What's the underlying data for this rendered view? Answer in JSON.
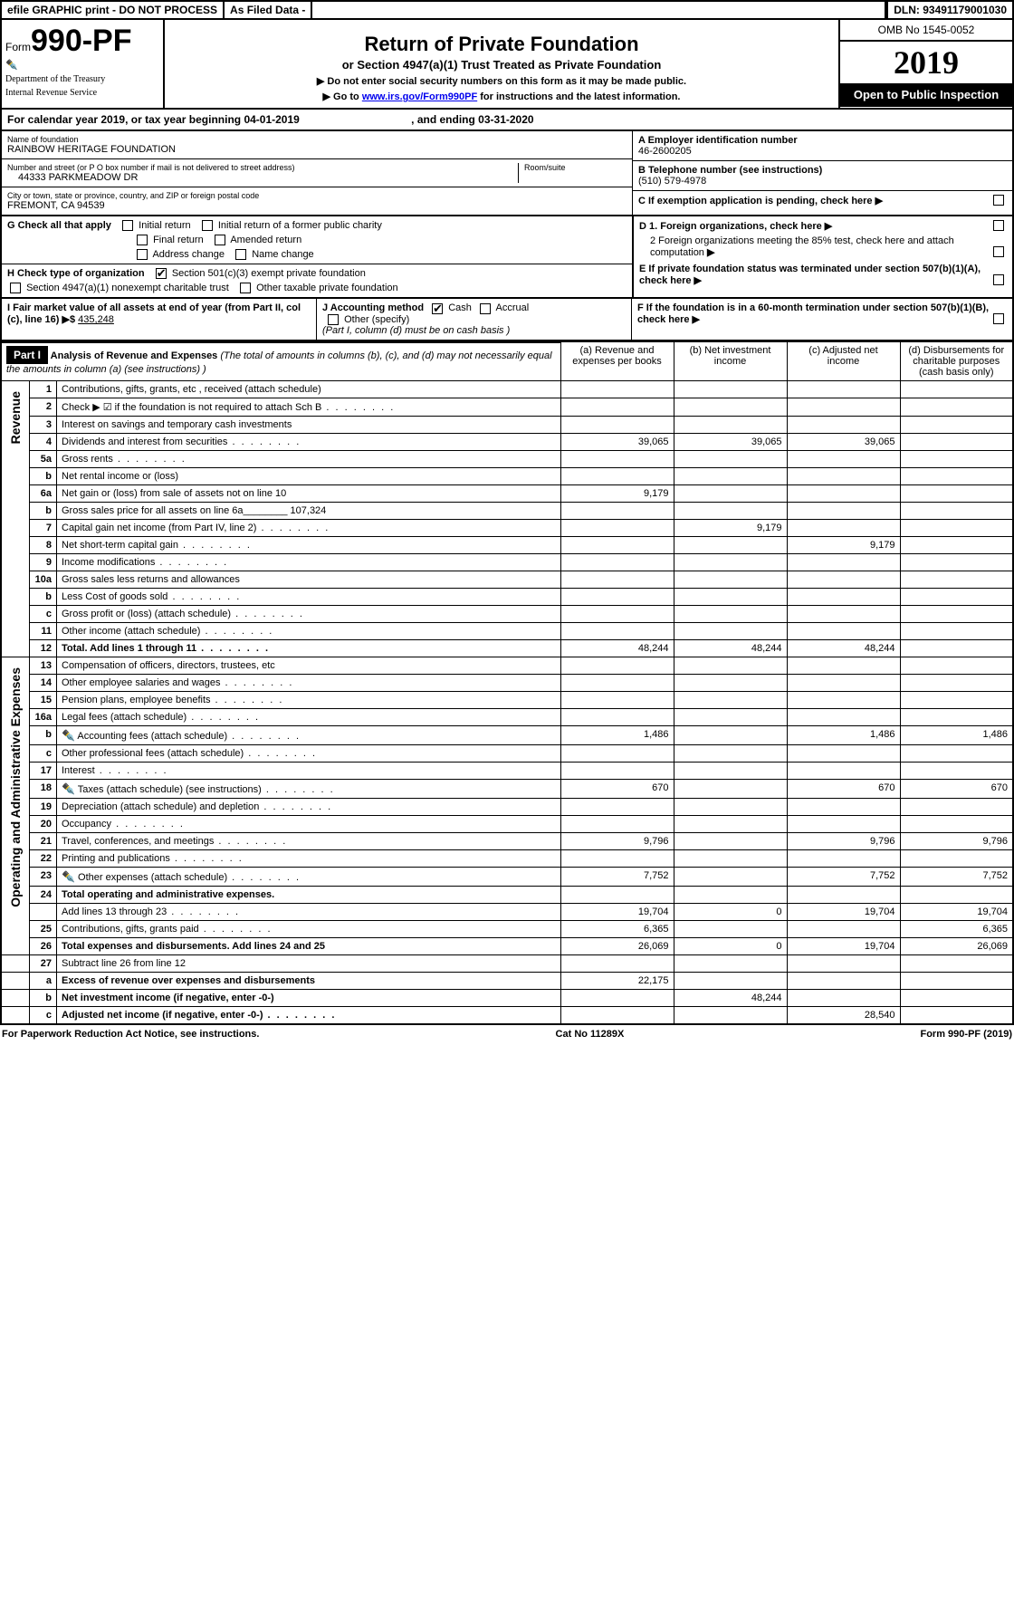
{
  "top_bar": {
    "efile": "efile GRAPHIC print - DO NOT PROCESS",
    "asfiled": "As Filed Data -",
    "dln_label": "DLN:",
    "dln": "93491179001030"
  },
  "header": {
    "form_prefix": "Form",
    "form_no": "990-PF",
    "dept1": "Department of the Treasury",
    "dept2": "Internal Revenue Service",
    "title": "Return of Private Foundation",
    "subtitle": "or Section 4947(a)(1) Trust Treated as Private Foundation",
    "note1": "▶ Do not enter social security numbers on this form as it may be made public.",
    "note2_pre": "▶ Go to ",
    "note2_link": "www.irs.gov/Form990PF",
    "note2_post": " for instructions and the latest information.",
    "omb": "OMB No 1545-0052",
    "year": "2019",
    "open_pub": "Open to Public Inspection"
  },
  "cal": {
    "line_a": "For calendar year 2019, or tax year beginning 04-01-2019",
    "line_b": ", and ending 03-31-2020"
  },
  "info": {
    "name_lbl": "Name of foundation",
    "name": "RAINBOW HERITAGE FOUNDATION",
    "addr_lbl": "Number and street (or P O  box number if mail is not delivered to street address)",
    "addr": "44333 PARKMEADOW DR",
    "room_lbl": "Room/suite",
    "city_lbl": "City or town, state or province, country, and ZIP or foreign postal code",
    "city": "FREMONT, CA  94539",
    "A_lbl": "A Employer identification number",
    "A_val": "46-2600205",
    "B_lbl": "B Telephone number (see instructions)",
    "B_val": "(510) 579-4978",
    "C_lbl": "C If exemption application is pending, check here"
  },
  "G": {
    "lbl": "G Check all that apply",
    "o1": "Initial return",
    "o2": "Initial return of a former public charity",
    "o3": "Final return",
    "o4": "Amended return",
    "o5": "Address change",
    "o6": "Name change"
  },
  "H": {
    "lbl": "H Check type of organization",
    "o1": "Section 501(c)(3) exempt private foundation",
    "o2": "Section 4947(a)(1) nonexempt charitable trust",
    "o3": "Other taxable private foundation"
  },
  "D": {
    "d1": "D 1. Foreign organizations, check here",
    "d2": "2 Foreign organizations meeting the 85% test, check here and attach computation",
    "E": "E  If private foundation status was terminated under section 507(b)(1)(A), check here"
  },
  "I": {
    "lbl": "I Fair market value of all assets at end of year (from Part II, col  (c), line 16) ▶$",
    "val": "435,248"
  },
  "J": {
    "lbl": "J Accounting method",
    "cash": "Cash",
    "accrual": "Accrual",
    "other": "Other (specify)",
    "note": "(Part I, column (d) must be on cash basis )"
  },
  "F": {
    "lbl": "F  If the foundation is in a 60-month termination under section 507(b)(1)(B), check here"
  },
  "part1": {
    "hdr": "Part I",
    "title": "Analysis of Revenue and Expenses",
    "title_note": " (The total of amounts in columns (b), (c), and (d) may not necessarily equal the amounts in column (a) (see instructions) )",
    "col_a": "(a)   Revenue and expenses per books",
    "col_b": "(b) Net investment income",
    "col_c": "(c) Adjusted net income",
    "col_d": "(d) Disbursements for charitable purposes (cash basis only)"
  },
  "sections": {
    "revenue": "Revenue",
    "opex": "Operating and Administrative Expenses"
  },
  "rows": [
    {
      "n": "1",
      "d": "Contributions, gifts, grants, etc , received (attach schedule)",
      "a": "",
      "b": "",
      "c": "",
      "dd": ""
    },
    {
      "n": "2",
      "d": "Check ▶ ☑ if the foundation is not required to attach Sch B",
      "dots": true
    },
    {
      "n": "3",
      "d": "Interest on savings and temporary cash investments"
    },
    {
      "n": "4",
      "d": "Dividends and interest from securities",
      "dots": true,
      "a": "39,065",
      "b": "39,065",
      "c": "39,065"
    },
    {
      "n": "5a",
      "d": "Gross rents",
      "dots": true
    },
    {
      "n": "b",
      "d": "Net rental income or (loss)"
    },
    {
      "n": "6a",
      "d": "Net gain or (loss) from sale of assets not on line 10",
      "a": "9,179"
    },
    {
      "n": "b",
      "d": "Gross sales price for all assets on line 6a________ 107,324"
    },
    {
      "n": "7",
      "d": "Capital gain net income (from Part IV, line 2)",
      "dots": true,
      "b": "9,179"
    },
    {
      "n": "8",
      "d": "Net short-term capital gain",
      "dots": true,
      "c": "9,179"
    },
    {
      "n": "9",
      "d": "Income modifications",
      "dots": true
    },
    {
      "n": "10a",
      "d": "Gross sales less returns and allowances"
    },
    {
      "n": "b",
      "d": "Less  Cost of goods sold",
      "dots": true
    },
    {
      "n": "c",
      "d": "Gross profit or (loss) (attach schedule)",
      "dots": true
    },
    {
      "n": "11",
      "d": "Other income (attach schedule)",
      "dots": true
    },
    {
      "n": "12",
      "d": "Total. Add lines 1 through 11",
      "dots": true,
      "bold": true,
      "a": "48,244",
      "b": "48,244",
      "c": "48,244"
    }
  ],
  "oprows": [
    {
      "n": "13",
      "d": "Compensation of officers, directors, trustees, etc"
    },
    {
      "n": "14",
      "d": "Other employee salaries and wages",
      "dots": true
    },
    {
      "n": "15",
      "d": "Pension plans, employee benefits",
      "dots": true
    },
    {
      "n": "16a",
      "d": "Legal fees (attach schedule)",
      "dots": true
    },
    {
      "n": "b",
      "d": "Accounting fees (attach schedule)",
      "dots": true,
      "icon": true,
      "a": "1,486",
      "c": "1,486",
      "dd": "1,486"
    },
    {
      "n": "c",
      "d": "Other professional fees (attach schedule)",
      "dots": true
    },
    {
      "n": "17",
      "d": "Interest",
      "dots": true
    },
    {
      "n": "18",
      "d": "Taxes (attach schedule) (see instructions)",
      "dots": true,
      "icon": true,
      "a": "670",
      "c": "670",
      "dd": "670"
    },
    {
      "n": "19",
      "d": "Depreciation (attach schedule) and depletion",
      "dots": true
    },
    {
      "n": "20",
      "d": "Occupancy",
      "dots": true
    },
    {
      "n": "21",
      "d": "Travel, conferences, and meetings",
      "dots": true,
      "a": "9,796",
      "c": "9,796",
      "dd": "9,796"
    },
    {
      "n": "22",
      "d": "Printing and publications",
      "dots": true
    },
    {
      "n": "23",
      "d": "Other expenses (attach schedule)",
      "dots": true,
      "icon": true,
      "a": "7,752",
      "c": "7,752",
      "dd": "7,752"
    },
    {
      "n": "24",
      "d": "Total operating and administrative expenses.",
      "bold": true
    },
    {
      "n": "",
      "d": "Add lines 13 through 23",
      "dots": true,
      "a": "19,704",
      "b": "0",
      "c": "19,704",
      "dd": "19,704"
    },
    {
      "n": "25",
      "d": "Contributions, gifts, grants paid",
      "dots": true,
      "a": "6,365",
      "dd": "6,365"
    },
    {
      "n": "26",
      "d": "Total expenses and disbursements. Add lines 24 and 25",
      "bold": true,
      "a": "26,069",
      "b": "0",
      "c": "19,704",
      "dd": "26,069"
    }
  ],
  "bottomrows": [
    {
      "n": "27",
      "d": "Subtract line 26 from line 12"
    },
    {
      "n": "a",
      "d": "Excess of revenue over expenses and disbursements",
      "bold": true,
      "a": "22,175"
    },
    {
      "n": "b",
      "d": "Net investment income (if negative, enter -0-)",
      "bold": true,
      "b": "48,244"
    },
    {
      "n": "c",
      "d": "Adjusted net income (if negative, enter -0-)",
      "bold": true,
      "dots": true,
      "c": "28,540"
    }
  ],
  "footer": {
    "left": "For Paperwork Reduction Act Notice, see instructions.",
    "mid": "Cat  No  11289X",
    "right": "Form 990-PF (2019)"
  }
}
